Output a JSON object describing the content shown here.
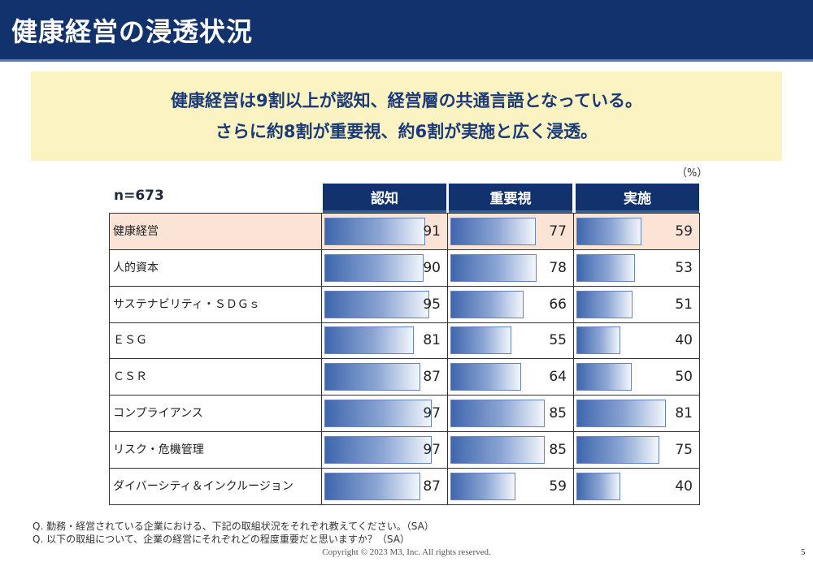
{
  "title": "健康経営の浸透状況",
  "summary": {
    "line1": "健康経営は9割以上が認知、経営層の共通言語となっている。",
    "line2": "さらに約8割が重要視、約6割が実施と広く浸透。"
  },
  "unit": "（%）",
  "n_label": "n=673",
  "notes": [
    "Q. 勤務・経営されている企業における、下記の取組状況をそれぞれ教えてください。（SA）",
    "Q. 以下の取組について、企業の経営にそれぞれどの程度重要だと思いますか？（SA）"
  ],
  "copyright": "Copyright © 2023  M3, Inc.  All rights reserved.",
  "page_number": "5",
  "colors": {
    "header": "#12326e",
    "highlight_row": "#fbe4d5",
    "summary_bg": "#fcf3c2",
    "bar": "#3f66ad"
  },
  "chart_data": {
    "type": "bar",
    "title": "",
    "categories": [
      "健康経営",
      "人的資本",
      "サステナビリティ・ＳＤＧｓ",
      "ＥＳＧ",
      "ＣＳＲ",
      "コンプライアンス",
      "リスク・危機管理",
      "ダイバーシティ＆インクルージョン"
    ],
    "series": [
      {
        "name": "認知",
        "values": [
          91,
          90,
          95,
          81,
          87,
          97,
          97,
          87
        ]
      },
      {
        "name": "重要視",
        "values": [
          77,
          78,
          66,
          55,
          64,
          85,
          85,
          59
        ]
      },
      {
        "name": "実施",
        "values": [
          59,
          53,
          51,
          40,
          50,
          81,
          75,
          40
        ]
      }
    ],
    "highlighted_category": "健康経営",
    "ylim": [
      0,
      100
    ]
  }
}
